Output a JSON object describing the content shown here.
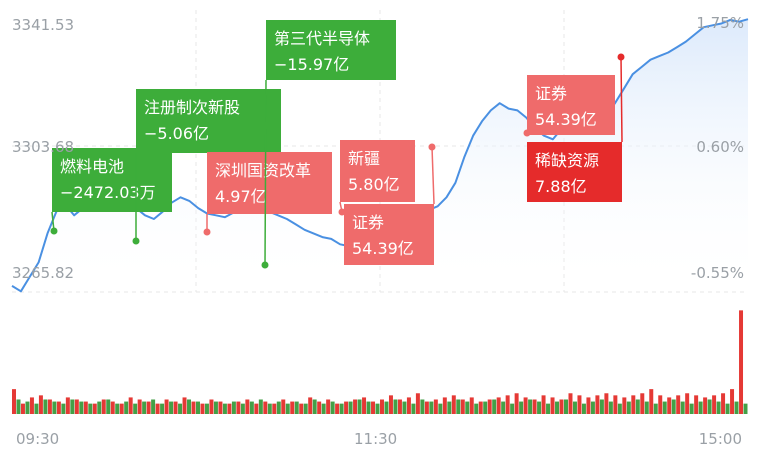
{
  "chart_data": {
    "type": "line",
    "left_axis_labels": [
      "3341.53",
      "3303.68",
      "3265.82"
    ],
    "right_axis_labels": [
      "1.75%",
      "0.60%",
      "-0.55%"
    ],
    "x_tick_labels": [
      "09:30",
      "11:30",
      "15:00"
    ],
    "y_range": [
      3265.82,
      3341.53
    ],
    "grid": true,
    "colors": {
      "line": "#4a90e2",
      "area_top": "#dbe9fb",
      "up": "#e53935",
      "down": "#43a047",
      "tag_green": "#3dad3a",
      "tag_red": "#ef6b6b",
      "tag_red_dark": "#e52b2b"
    },
    "price_series": [
      3267.5,
      3266.0,
      3270.0,
      3274.0,
      3282.0,
      3288.0,
      3290.0,
      3287.0,
      3289.0,
      3293.0,
      3296.0,
      3294.0,
      3292.0,
      3290.5,
      3289.0,
      3287.0,
      3286.0,
      3288.0,
      3290.5,
      3292.0,
      3291.0,
      3289.0,
      3287.5,
      3287.0,
      3286.5,
      3287.8,
      3289.0,
      3290.0,
      3289.5,
      3288.0,
      3287.0,
      3286.0,
      3284.5,
      3283.0,
      3282.0,
      3281.0,
      3280.5,
      3279.0,
      3278.5,
      3279.5,
      3281.5,
      3282.0,
      3283.0,
      3284.0,
      3286.0,
      3287.0,
      3287.5,
      3288.5,
      3289.5,
      3292.0,
      3296.0,
      3303.0,
      3309.0,
      3313.0,
      3316.0,
      3318.0,
      3316.5,
      3316.0,
      3314.0,
      3311.0,
      3309.0,
      3308.0,
      3311.0,
      3313.0,
      3314.0,
      3312.0,
      3313.5,
      3315.0,
      3318.0,
      3322.0,
      3326.0,
      3328.0,
      3330.0,
      3331.0,
      3332.0,
      3333.5,
      3335.0,
      3337.0,
      3339.0,
      3339.5,
      3340.0,
      3341.0,
      3340.5,
      3341.2
    ],
    "volume_up": [
      0.12,
      0.05,
      0.08,
      0.09,
      0.07,
      0.06,
      0.08,
      0.07,
      0.06,
      0.05,
      0.07,
      0.06,
      0.05,
      0.08,
      0.07,
      0.06,
      0.05,
      0.07,
      0.06,
      0.08,
      0.06,
      0.05,
      0.07,
      0.06,
      0.05,
      0.06,
      0.07,
      0.05,
      0.06,
      0.05,
      0.07,
      0.06,
      0.05,
      0.08,
      0.06,
      0.07,
      0.05,
      0.06,
      0.07,
      0.08,
      0.06,
      0.07,
      0.09,
      0.07,
      0.08,
      0.1,
      0.06,
      0.07,
      0.08,
      0.09,
      0.07,
      0.08,
      0.06,
      0.07,
      0.08,
      0.09,
      0.1,
      0.08,
      0.07,
      0.09,
      0.08,
      0.07,
      0.1,
      0.09,
      0.08,
      0.09,
      0.1,
      0.09,
      0.08,
      0.09,
      0.1,
      0.12,
      0.09,
      0.08,
      0.09,
      0.1,
      0.09,
      0.08,
      0.09,
      0.1,
      0.12,
      0.5
    ],
    "volume_down": [
      0.07,
      0.06,
      0.05,
      0.07,
      0.06,
      0.05,
      0.07,
      0.06,
      0.05,
      0.06,
      0.07,
      0.05,
      0.06,
      0.05,
      0.06,
      0.07,
      0.05,
      0.06,
      0.05,
      0.07,
      0.06,
      0.05,
      0.06,
      0.05,
      0.06,
      0.05,
      0.06,
      0.07,
      0.05,
      0.06,
      0.05,
      0.06,
      0.05,
      0.07,
      0.05,
      0.06,
      0.05,
      0.06,
      0.07,
      0.06,
      0.05,
      0.06,
      0.07,
      0.06,
      0.05,
      0.07,
      0.06,
      0.05,
      0.06,
      0.07,
      0.06,
      0.05,
      0.06,
      0.07,
      0.06,
      0.05,
      0.06,
      0.07,
      0.06,
      0.05,
      0.06,
      0.07,
      0.06,
      0.05,
      0.06,
      0.07,
      0.06,
      0.05,
      0.06,
      0.07,
      0.06,
      0.05,
      0.06,
      0.07,
      0.06,
      0.05,
      0.06,
      0.07,
      0.06,
      0.05,
      0.06,
      0.05
    ],
    "annotations": [
      {
        "name": "燃料电池",
        "value": "−2472.03万",
        "color": "green",
        "point_index": 8
      },
      {
        "name": "注册制次新股",
        "value": "−5.06亿",
        "color": "green",
        "point_index": 23
      },
      {
        "name": "深圳国资改革",
        "value": "4.97亿",
        "color": "red",
        "point_index": 37
      },
      {
        "name": "第三代半导体",
        "value": "−15.97亿",
        "color": "green",
        "point_index": 47
      },
      {
        "name": "新疆",
        "value": "5.80亿",
        "color": "red",
        "point_index": 62
      },
      {
        "name": "证券",
        "value": "54.39亿",
        "color": "red",
        "point_index": 75
      },
      {
        "name": "证券",
        "value": "54.39亿",
        "color": "red",
        "point_index": 96
      },
      {
        "name": "稀缺资源",
        "value": "7.88亿",
        "color": "red_dark",
        "point_index": 110
      }
    ]
  }
}
